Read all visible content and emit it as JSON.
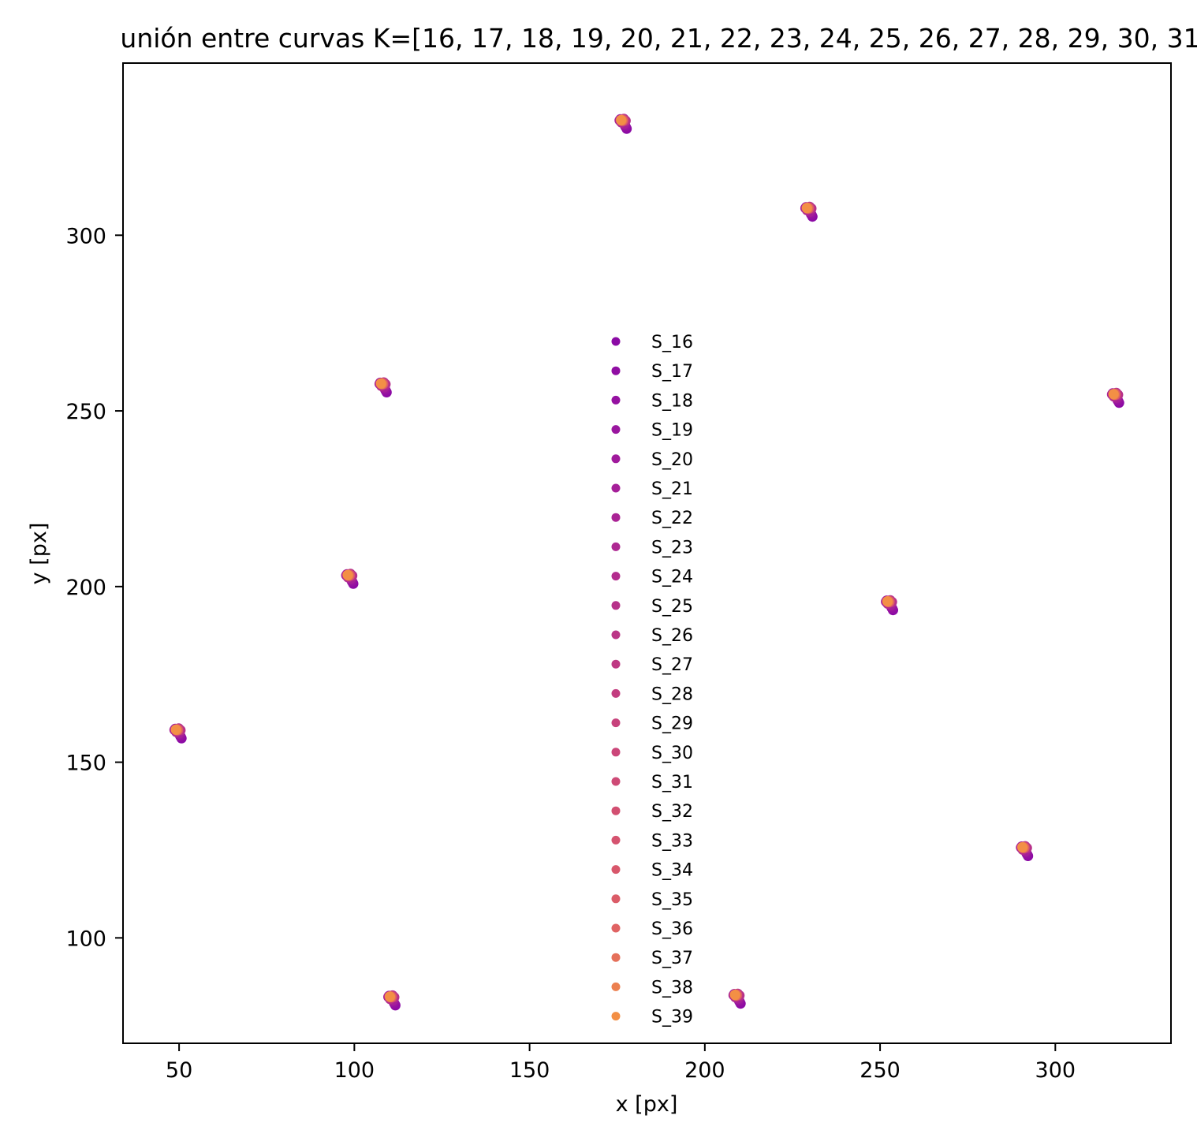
{
  "chart_data": {
    "type": "scatter",
    "title": "unión entre curvas K=[16, 17, 18, 19, 20, 21, 22, 23, 24, 25, 26, 27, 28, 29, 30, 31",
    "xlabel": "x [px]",
    "ylabel": "y [px]",
    "xlim": [
      34,
      333
    ],
    "ylim": [
      70,
      349
    ],
    "xticks": [
      50,
      100,
      150,
      200,
      250,
      300
    ],
    "yticks": [
      100,
      150,
      200,
      250,
      300
    ],
    "grid": false,
    "legend_position": "center",
    "colormap": "plasma",
    "clusters": [
      {
        "x": 176.5,
        "y": 332.5
      },
      {
        "x": 229.5,
        "y": 307.5
      },
      {
        "x": 108.0,
        "y": 257.5
      },
      {
        "x": 317.0,
        "y": 254.5
      },
      {
        "x": 98.5,
        "y": 203.0
      },
      {
        "x": 252.5,
        "y": 195.5
      },
      {
        "x": 49.5,
        "y": 159.0
      },
      {
        "x": 291.0,
        "y": 125.5
      },
      {
        "x": 110.5,
        "y": 83.0
      },
      {
        "x": 209.0,
        "y": 83.5
      }
    ],
    "series": [
      {
        "name": "S_16",
        "color": "#8b0aa5",
        "dx": 1.2,
        "dy": -2.2
      },
      {
        "name": "S_17",
        "color": "#900da3",
        "dx": 1.0,
        "dy": -1.8
      },
      {
        "name": "S_18",
        "color": "#9511a1",
        "dx": 0.8,
        "dy": -1.5
      },
      {
        "name": "S_19",
        "color": "#9a169f",
        "dx": 0.7,
        "dy": -1.1
      },
      {
        "name": "S_20",
        "color": "#a01a9c",
        "dx": -0.6,
        "dy": 0.5
      },
      {
        "name": "S_21",
        "color": "#a51f99",
        "dx": 0.5,
        "dy": -0.8
      },
      {
        "name": "S_22",
        "color": "#aa2395",
        "dx": -0.8,
        "dy": 0.2
      },
      {
        "name": "S_23",
        "color": "#ae2892",
        "dx": 0.4,
        "dy": 0.6
      },
      {
        "name": "S_24",
        "color": "#b32c8e",
        "dx": -0.3,
        "dy": -0.4
      },
      {
        "name": "S_25",
        "color": "#b7318a",
        "dx": 0.9,
        "dy": 0.1
      },
      {
        "name": "S_26",
        "color": "#bb3587",
        "dx": -0.5,
        "dy": 0.3
      },
      {
        "name": "S_27",
        "color": "#bf3984",
        "dx": 0.3,
        "dy": 0.4
      },
      {
        "name": "S_28",
        "color": "#c33d80",
        "dx": -0.2,
        "dy": 0.2
      },
      {
        "name": "S_29",
        "color": "#c7427c",
        "dx": 0.2,
        "dy": 0.5
      },
      {
        "name": "S_30",
        "color": "#cb4679",
        "dx": -0.1,
        "dy": 0.3
      },
      {
        "name": "S_31",
        "color": "#ce4a76",
        "dx": 0.0,
        "dy": 0.4
      },
      {
        "name": "S_32",
        "color": "#d24f71",
        "dx": 0.1,
        "dy": 0.2
      },
      {
        "name": "S_33",
        "color": "#d5536f",
        "dx": -0.2,
        "dy": 0.3
      },
      {
        "name": "S_34",
        "color": "#d8576b",
        "dx": 0.2,
        "dy": 0.1
      },
      {
        "name": "S_35",
        "color": "#db5c68",
        "dx": -0.1,
        "dy": 0.2
      },
      {
        "name": "S_36",
        "color": "#e06363",
        "dx": 0.0,
        "dy": 0.3
      },
      {
        "name": "S_37",
        "color": "#e5705a",
        "dx": -0.2,
        "dy": 0.1
      },
      {
        "name": "S_38",
        "color": "#ec8050",
        "dx": -0.3,
        "dy": 0.2
      },
      {
        "name": "S_39",
        "color": "#f38f45",
        "dx": -0.4,
        "dy": 0.3
      }
    ]
  }
}
